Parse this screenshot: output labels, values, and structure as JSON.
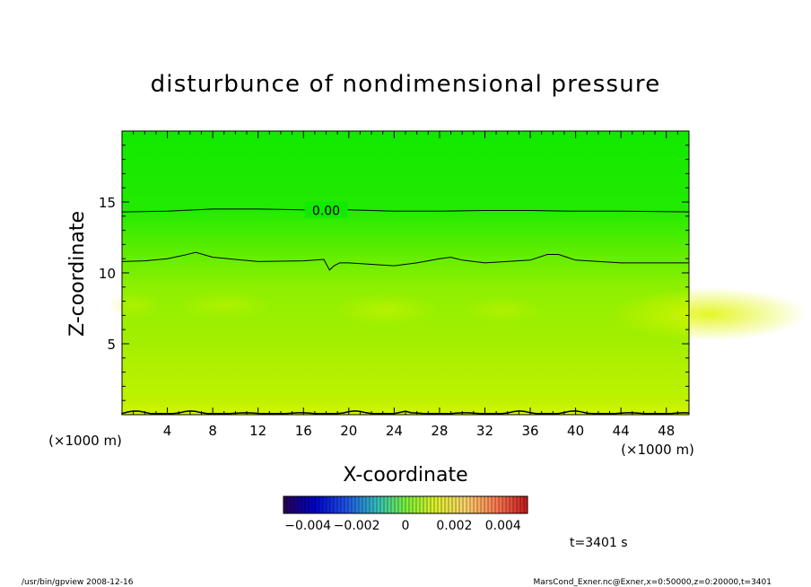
{
  "chart_data": {
    "type": "heatmap",
    "title": "disturbunce of nondimensional pressure",
    "xlabel": "X-coordinate",
    "ylabel": "Z-coordinate",
    "x_unit": "(×1000 m)",
    "y_unit": "(×1000 m)",
    "xlim": [
      0,
      50
    ],
    "ylim": [
      0,
      20
    ],
    "x_ticks": [
      4,
      8,
      12,
      16,
      20,
      24,
      28,
      32,
      36,
      40,
      44,
      48
    ],
    "y_ticks": [
      5,
      10,
      15
    ],
    "contours": [
      {
        "level": 0.0,
        "label": "0.00",
        "x": [
          0,
          4,
          8,
          12,
          16,
          20,
          24,
          28,
          32,
          36,
          40,
          44,
          50
        ],
        "z": [
          14.3,
          14.35,
          14.5,
          14.5,
          14.45,
          14.45,
          14.35,
          14.35,
          14.4,
          14.4,
          14.35,
          14.35,
          14.3
        ]
      },
      {
        "level": 0.0,
        "label": "",
        "x": [
          0,
          2,
          4,
          5.5,
          6.5,
          8,
          12,
          16,
          17.8,
          18.3,
          18.7,
          19.2,
          20,
          24,
          26,
          28,
          29,
          30,
          32,
          36,
          37.5,
          38.5,
          40,
          44,
          50
        ],
        "z": [
          10.8,
          10.85,
          11.0,
          11.25,
          11.45,
          11.1,
          10.8,
          10.85,
          10.95,
          10.2,
          10.5,
          10.7,
          10.7,
          10.5,
          10.7,
          11.0,
          11.1,
          10.9,
          10.7,
          10.9,
          11.3,
          11.3,
          10.9,
          10.7,
          10.7
        ]
      }
    ],
    "colorbar": {
      "ticks": [
        "-0.004",
        "-0.002",
        "0",
        "0.002",
        "0.004"
      ],
      "range": [
        -0.005,
        0.005
      ]
    },
    "legend_position": "bottom"
  },
  "annotations": {
    "time": "t=3401 s",
    "footer_left": "/usr/bin/gpview   2008-12-16",
    "footer_right": "MarsCond_Exner.nc@Exner,x=0:50000,z=0:20000,t=3401"
  }
}
